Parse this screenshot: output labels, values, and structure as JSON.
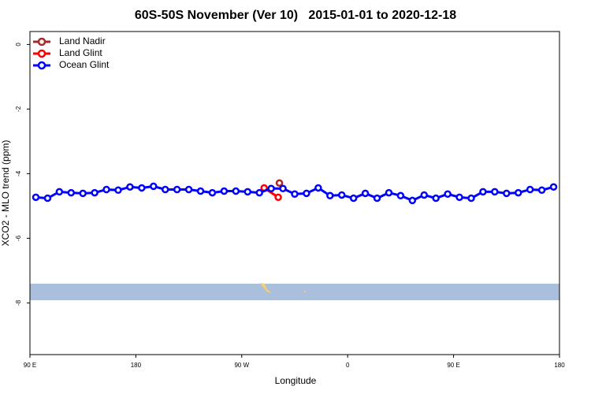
{
  "chart_data": {
    "type": "line",
    "title": "60S-50S November (Ver 10)   2015-01-01 to 2020-12-18",
    "x_label": "Longitude",
    "y_label": "XCO2 - MLO trend (ppm)",
    "xlim": [
      90,
      540
    ],
    "ylim": [
      -9.6,
      0.4
    ],
    "xticks": [
      {
        "value": 90,
        "label": "90 E"
      },
      180,
      {
        "value": 270,
        "label": "90 W"
      },
      {
        "value": 360,
        "label": "0"
      },
      {
        "value": 450,
        "label": "90 E"
      },
      {
        "value": 540,
        "label": "180"
      }
    ],
    "yticks": [
      0,
      -2,
      -4,
      -6,
      -8
    ],
    "legend": "upper left",
    "series": [
      {
        "name": "Land Nadir",
        "color": "#a52a2a",
        "x": [
          302
        ],
        "values": [
          -4.29
        ]
      },
      {
        "name": "Land Glint",
        "color": "#ff0000",
        "x": [
          289,
          301
        ],
        "values": [
          -4.44,
          -4.73
        ]
      },
      {
        "name": "Ocean Glint",
        "color": "#0000ff",
        "x": [
          95,
          105,
          115,
          125,
          135,
          145,
          155,
          165,
          175,
          185,
          195,
          205,
          215,
          225,
          235,
          245,
          255,
          265,
          275,
          285,
          295,
          305,
          315,
          325,
          335,
          345,
          355,
          365,
          375,
          385,
          395,
          405,
          415,
          425,
          435,
          445,
          455,
          465,
          475,
          485,
          495,
          505,
          515,
          525,
          535
        ],
        "values": [
          -4.73,
          -4.76,
          -4.56,
          -4.59,
          -4.61,
          -4.59,
          -4.49,
          -4.51,
          -4.41,
          -4.44,
          -4.39,
          -4.49,
          -4.49,
          -4.49,
          -4.54,
          -4.59,
          -4.54,
          -4.54,
          -4.56,
          -4.59,
          -4.46,
          -4.46,
          -4.63,
          -4.61,
          -4.44,
          -4.68,
          -4.66,
          -4.76,
          -4.61,
          -4.76,
          -4.59,
          -4.68,
          -4.83,
          -4.66,
          -4.76,
          -4.63,
          -4.73,
          -4.76,
          -4.56,
          -4.56,
          -4.61,
          -4.59,
          -4.49,
          -4.51,
          -4.41
        ]
      }
    ]
  }
}
